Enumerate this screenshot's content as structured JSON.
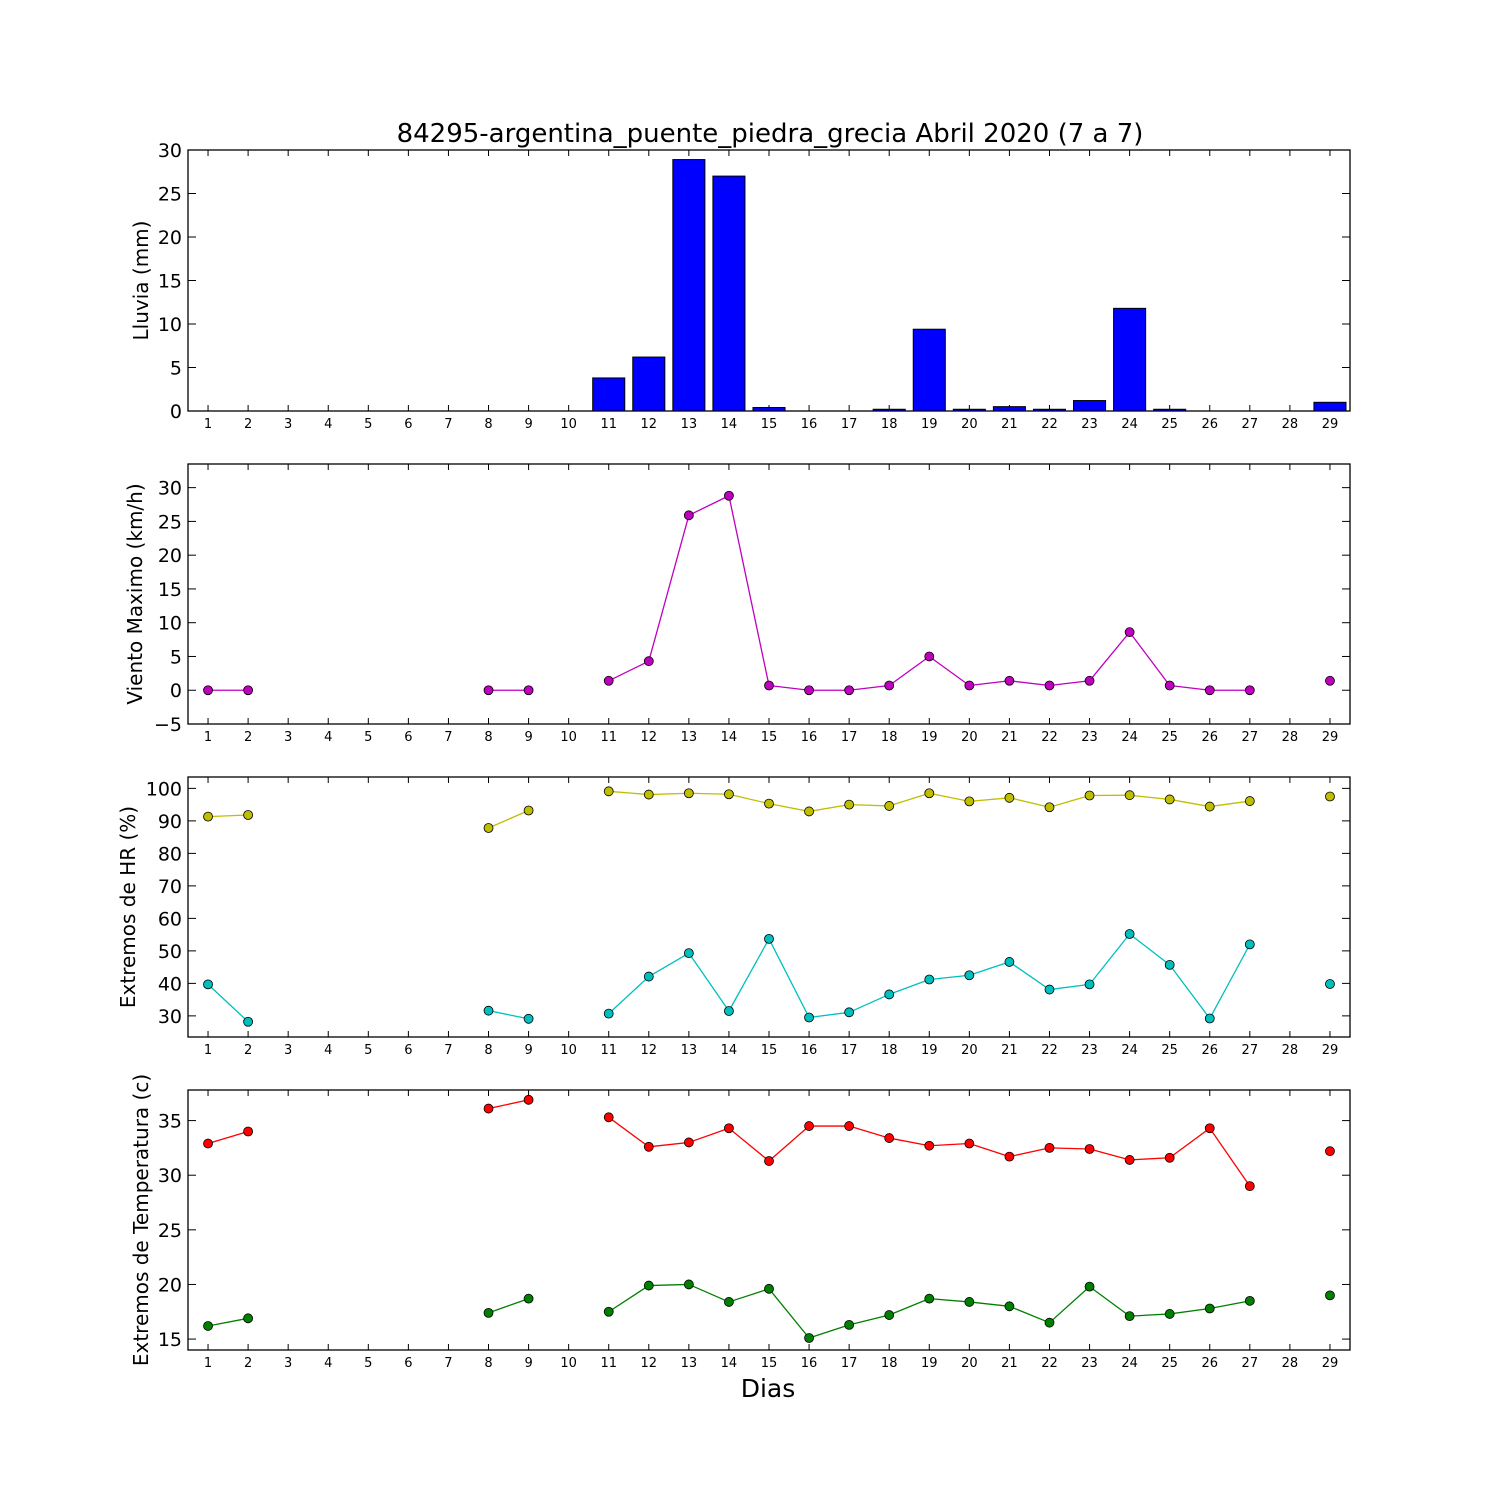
{
  "title": "84295-argentina_puente_piedra_grecia Abril 2020  (7 a 7)",
  "xlabel": "Dias",
  "chart_data": [
    {
      "type": "bar",
      "ylabel": "Lluvia (mm)",
      "ylim": [
        0,
        30
      ],
      "yticks": [
        0,
        5,
        10,
        15,
        20,
        25,
        30
      ],
      "x": [
        1,
        2,
        3,
        4,
        5,
        6,
        7,
        8,
        9,
        10,
        11,
        12,
        13,
        14,
        15,
        16,
        17,
        18,
        19,
        20,
        21,
        22,
        23,
        24,
        25,
        26,
        27,
        28,
        29
      ],
      "xticks": [
        1,
        2,
        3,
        4,
        5,
        6,
        7,
        8,
        9,
        10,
        11,
        12,
        13,
        14,
        15,
        16,
        17,
        18,
        19,
        20,
        21,
        22,
        23,
        24,
        25,
        26,
        27,
        28,
        29
      ],
      "values": [
        0,
        0,
        0,
        0,
        0,
        0,
        0,
        0,
        0,
        0,
        3.8,
        6.2,
        28.9,
        27.0,
        0.4,
        0,
        0,
        0.2,
        9.4,
        0.2,
        0.5,
        0.2,
        1.2,
        11.8,
        0.2,
        0,
        0,
        0,
        1.0
      ],
      "color": "#0000ff"
    },
    {
      "type": "line",
      "ylabel": "Viento Maximo (km/h)",
      "ylim": [
        -5,
        33.5
      ],
      "yticks": [
        -5,
        0,
        5,
        10,
        15,
        20,
        25,
        30
      ],
      "x": [
        1,
        2,
        3,
        4,
        5,
        6,
        7,
        8,
        9,
        10,
        11,
        12,
        13,
        14,
        15,
        16,
        17,
        18,
        19,
        20,
        21,
        22,
        23,
        24,
        25,
        26,
        27,
        28,
        29
      ],
      "xticks": [
        1,
        2,
        3,
        4,
        5,
        6,
        7,
        8,
        9,
        10,
        11,
        12,
        13,
        14,
        15,
        16,
        17,
        18,
        19,
        20,
        21,
        22,
        23,
        24,
        25,
        26,
        27,
        28,
        29
      ],
      "series": [
        {
          "color": "#bf00bf",
          "values": [
            0,
            0,
            null,
            null,
            null,
            null,
            null,
            0,
            0,
            null,
            1.4,
            4.3,
            25.9,
            28.8,
            0.7,
            0,
            0,
            0.7,
            5.0,
            0.7,
            1.4,
            0.7,
            1.4,
            8.6,
            0.7,
            0,
            0,
            null,
            1.4
          ]
        }
      ]
    },
    {
      "type": "line",
      "ylabel": "Extremos de HR (%)",
      "ylim": [
        23.5,
        103.5
      ],
      "yticks": [
        30,
        40,
        50,
        60,
        70,
        80,
        90,
        100
      ],
      "x": [
        1,
        2,
        3,
        4,
        5,
        6,
        7,
        8,
        9,
        10,
        11,
        12,
        13,
        14,
        15,
        16,
        17,
        18,
        19,
        20,
        21,
        22,
        23,
        24,
        25,
        26,
        27,
        28,
        29
      ],
      "xticks": [
        1,
        2,
        3,
        4,
        5,
        6,
        7,
        8,
        9,
        10,
        11,
        12,
        13,
        14,
        15,
        16,
        17,
        18,
        19,
        20,
        21,
        22,
        23,
        24,
        25,
        26,
        27,
        28,
        29
      ],
      "series": [
        {
          "color": "#bfbf00",
          "values": [
            91.3,
            91.8,
            null,
            null,
            null,
            null,
            null,
            87.8,
            93.2,
            null,
            99.1,
            98.1,
            98.5,
            98.2,
            95.3,
            92.9,
            95.0,
            94.6,
            98.5,
            96.0,
            97.1,
            94.2,
            97.8,
            97.9,
            96.6,
            94.4,
            96.1,
            null,
            97.5
          ]
        },
        {
          "color": "#00bfbf",
          "values": [
            39.7,
            28.2,
            null,
            null,
            null,
            null,
            null,
            31.6,
            29.1,
            null,
            30.7,
            42.1,
            49.3,
            31.5,
            53.7,
            29.5,
            31.1,
            36.6,
            41.2,
            42.5,
            46.6,
            38.1,
            39.7,
            55.2,
            45.7,
            29.2,
            52.0,
            null,
            39.8
          ]
        }
      ]
    },
    {
      "type": "line",
      "ylabel": "Extremos de Temperatura (c)",
      "ylim": [
        14,
        37.8
      ],
      "yticks": [
        15,
        20,
        25,
        30,
        35
      ],
      "x": [
        1,
        2,
        3,
        4,
        5,
        6,
        7,
        8,
        9,
        10,
        11,
        12,
        13,
        14,
        15,
        16,
        17,
        18,
        19,
        20,
        21,
        22,
        23,
        24,
        25,
        26,
        27,
        28,
        29
      ],
      "xticks": [
        1,
        2,
        3,
        4,
        5,
        6,
        7,
        8,
        9,
        10,
        11,
        12,
        13,
        14,
        15,
        16,
        17,
        18,
        19,
        20,
        21,
        22,
        23,
        24,
        25,
        26,
        27,
        28,
        29
      ],
      "series": [
        {
          "color": "#ff0000",
          "values": [
            32.9,
            34.0,
            null,
            null,
            null,
            null,
            null,
            36.1,
            36.9,
            null,
            35.3,
            32.6,
            33.0,
            34.3,
            31.3,
            34.5,
            34.5,
            33.4,
            32.7,
            32.9,
            31.7,
            32.5,
            32.4,
            31.4,
            31.6,
            34.3,
            29.0,
            null,
            32.2
          ]
        },
        {
          "color": "#008000",
          "values": [
            16.2,
            16.9,
            null,
            null,
            null,
            null,
            null,
            17.4,
            18.7,
            null,
            17.5,
            19.9,
            20.0,
            18.4,
            19.6,
            15.1,
            16.3,
            17.2,
            18.7,
            18.4,
            18.0,
            16.5,
            19.8,
            17.1,
            17.3,
            17.8,
            18.5,
            null,
            19.0
          ]
        }
      ]
    }
  ]
}
